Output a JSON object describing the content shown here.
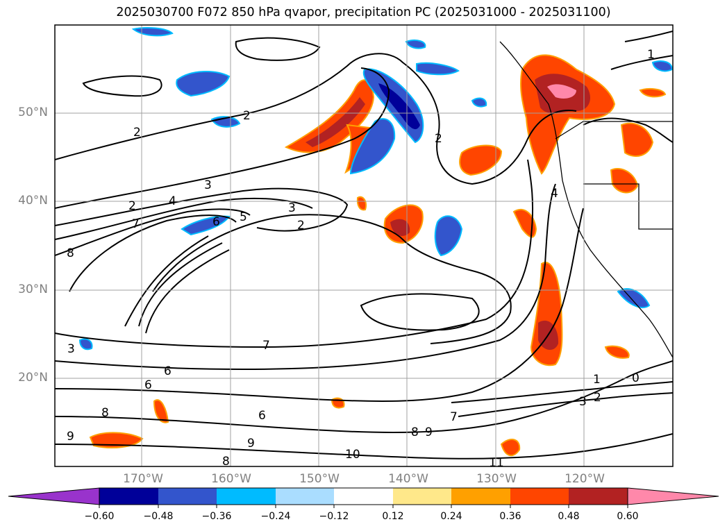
{
  "title": "2025030700 F072 850 hPa qvapor, precipitation PC (2025031000 - 2025031100)",
  "lat_labels": [
    "50°N",
    "40°N",
    "30°N",
    "20°N"
  ],
  "lon_labels": [
    "170°W",
    "160°W",
    "150°W",
    "140°W",
    "130°W",
    "120°W"
  ],
  "colorbar": {
    "ticks": [
      "−0.60",
      "−0.48",
      "−0.36",
      "−0.24",
      "−0.12",
      "0.12",
      "0.24",
      "0.36",
      "0.48",
      "0.60"
    ],
    "colors": [
      "#9933cc",
      "#000099",
      "#3355cc",
      "#00bbff",
      "#aaddff",
      "#ffffff",
      "#ffe88a",
      "#ffa000",
      "#ff4500",
      "#b22222",
      "#ff88aa"
    ]
  },
  "contour_labels": [
    "1",
    "2",
    "2",
    "2",
    "2",
    "2",
    "3",
    "3",
    "4",
    "5",
    "6",
    "7",
    "7",
    "8",
    "8",
    "9",
    "10",
    "11",
    "1",
    "2",
    "3",
    "0",
    "6",
    "3",
    "4",
    "6",
    "8",
    "9",
    "8",
    "9",
    "6",
    "7"
  ]
}
